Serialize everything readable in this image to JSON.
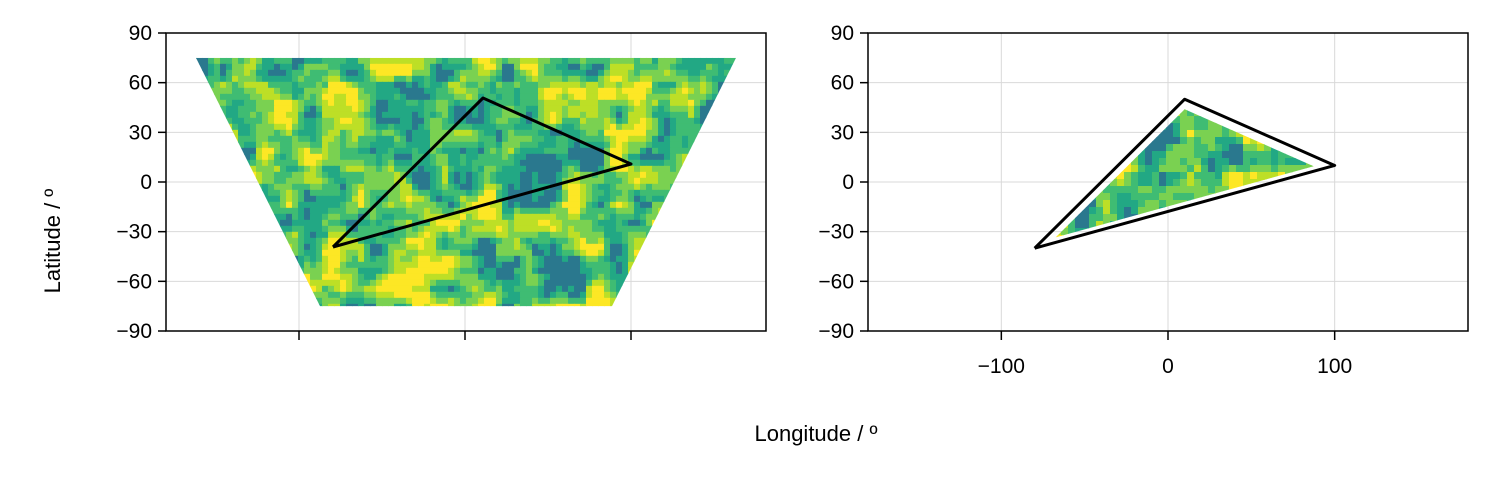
{
  "figure": {
    "ylabel": "Latitude / º",
    "xlabel": "Longitude / º"
  },
  "colors": {
    "contour_levels": [
      "#2a788e",
      "#22a884",
      "#3fbc73",
      "#7ad151",
      "#bddf26",
      "#fde725"
    ],
    "outline": "#000000",
    "grid": "#d9d9d9"
  },
  "chart_data": [
    {
      "type": "heatmap",
      "panel": "left",
      "description_kind": "filled contour of random field on a projected (trapezoid) domain with triangle outline",
      "ylim": [
        -90,
        90
      ],
      "yticks": [
        -90,
        -60,
        -30,
        0,
        30,
        60,
        90
      ],
      "ytick_labels": [
        "−90",
        "−60",
        "−30",
        "0",
        "30",
        "60",
        "90"
      ],
      "xticks": [
        -100,
        0,
        100
      ],
      "xtick_labels": [
        "",
        "",
        ""
      ],
      "grid": true,
      "domain_lat_range": [
        -75,
        75
      ],
      "triangle": [
        [
          -80,
          -40
        ],
        [
          10,
          50
        ],
        [
          100,
          10
        ]
      ]
    },
    {
      "type": "heatmap",
      "panel": "right",
      "description_kind": "filled contour masked to interior of triangle outline",
      "xlim": [
        -180,
        180
      ],
      "ylim": [
        -90,
        90
      ],
      "xticks": [
        -100,
        0,
        100
      ],
      "xtick_labels": [
        "−100",
        "0",
        "100"
      ],
      "yticks": [
        -90,
        -60,
        -30,
        0,
        30,
        60,
        90
      ],
      "ytick_labels": [
        "−90",
        "−60",
        "−30",
        "0",
        "30",
        "60",
        "90"
      ],
      "grid": true,
      "triangle": [
        [
          -80,
          -40
        ],
        [
          10,
          50
        ],
        [
          100,
          10
        ]
      ]
    }
  ]
}
